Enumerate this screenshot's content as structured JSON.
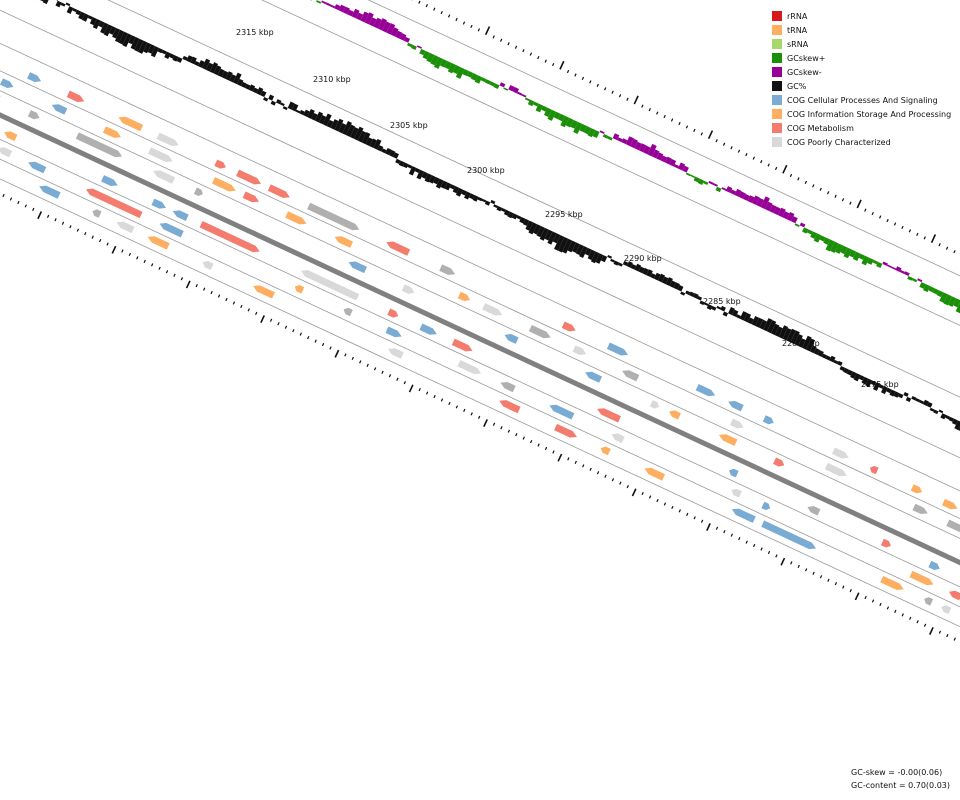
{
  "legend": {
    "items": [
      {
        "label": "rRNA",
        "color": "#d7191c"
      },
      {
        "label": "tRNA",
        "color": "#fdae61"
      },
      {
        "label": "sRNA",
        "color": "#a6d96a"
      },
      {
        "label": "GCskew+",
        "color": "#1a8f07"
      },
      {
        "label": "GCskew-",
        "color": "#960096"
      },
      {
        "label": "GC%",
        "color": "#111111"
      },
      {
        "label": "COG Cellular Processes And Signaling",
        "color": "#7aabd3"
      },
      {
        "label": "COG Information Storage And Processing",
        "color": "#fdae61"
      },
      {
        "label": "COG Metabolism",
        "color": "#f47c6e"
      },
      {
        "label": "COG Poorly Characterized",
        "color": "#d9d9d9"
      }
    ]
  },
  "ticks": [
    "2315 kbp",
    "2310 kbp",
    "2305 kbp",
    "2300 kbp",
    "2295 kbp",
    "2290 kbp",
    "2285 kbp",
    "2280 kbp",
    "2275 kbp"
  ],
  "stats": {
    "gc_skew": "GC-skew = -0.00(0.06)",
    "gc_content": "GC-content = 0.70(0.03)"
  },
  "colors": {
    "gc_skew_pos": "#1a8f07",
    "gc_skew_neg": "#960096",
    "gc_content": "#111111",
    "backbone": "#808080",
    "cog_cellular": "#7aabd3",
    "cog_info": "#fdae61",
    "cog_metabolism": "#f47c6e",
    "cog_poor": "#d9d9d9",
    "cog_unknown": "#b0b0b0"
  }
}
